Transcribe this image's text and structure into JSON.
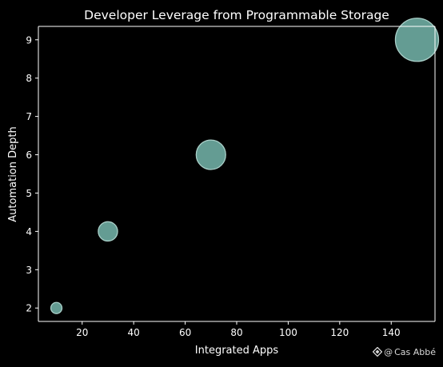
{
  "chart_data": {
    "type": "scatter",
    "title": "Developer Leverage from Programmable Storage",
    "xlabel": "Integrated Apps",
    "ylabel": "Automation Depth",
    "xlim": [
      3,
      157
    ],
    "ylim": [
      1.65,
      9.35
    ],
    "xticks": [
      20,
      40,
      60,
      80,
      100,
      120,
      140
    ],
    "yticks": [
      2,
      3,
      4,
      5,
      6,
      7,
      8,
      9
    ],
    "grid": false,
    "points": [
      {
        "x": 10,
        "y": 2,
        "size": 10
      },
      {
        "x": 30,
        "y": 4,
        "size": 30
      },
      {
        "x": 70,
        "y": 6,
        "size": 70
      },
      {
        "x": 150,
        "y": 9,
        "size": 150
      }
    ],
    "colors": {
      "background": "#000000",
      "marker_fill": "#69a49b",
      "marker_edge": "#a9cfc8",
      "axis": "#ffffff",
      "text": "#ffffff"
    }
  },
  "watermark": {
    "text": "Cas Abbé",
    "at_icon": "@",
    "logo_icon": "diamond-logo-icon"
  }
}
